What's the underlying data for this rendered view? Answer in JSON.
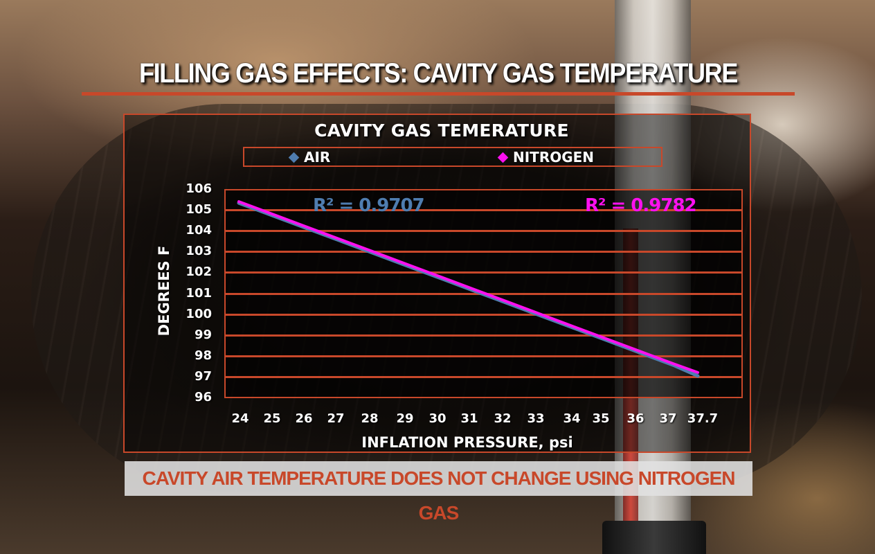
{
  "title": "FILLING GAS EFFECTS: CAVITY GAS TEMPERATURE",
  "footer": "CAVITY AIR TEMPERATURE DOES NOT CHANGE USING NITROGEN GAS",
  "colors": {
    "accent": "#c8482a",
    "air": "#4f7db0",
    "nitrogen": "#ff10f0",
    "text": "#ffffff"
  },
  "chart_data": {
    "type": "line",
    "title": "CAVITY GAS TEMERATURE",
    "xlabel": "INFLATION PRESSURE, psi",
    "ylabel": "DEGREES F",
    "x": [
      "24",
      "25",
      "26",
      "27",
      "28",
      "29",
      "30",
      "31",
      "32",
      "33",
      "34",
      "35",
      "36",
      "37",
      "37.7"
    ],
    "yticks": [
      "106",
      "105",
      "104",
      "103",
      "102",
      "101",
      "100",
      "99",
      "98",
      "97",
      "96"
    ],
    "ylim": [
      96,
      106
    ],
    "grid": true,
    "legend_position": "top",
    "legend": [
      "AIR",
      "NITROGEN"
    ],
    "series": [
      {
        "name": "AIR",
        "color": "#4f7db0",
        "r_squared_label": "R² = 0.9707",
        "values": [
          105.4,
          104.8,
          104.2,
          103.6,
          103.0,
          102.4,
          101.8,
          101.2,
          100.6,
          100.0,
          99.4,
          98.8,
          98.2,
          97.6,
          97.1
        ]
      },
      {
        "name": "NITROGEN",
        "color": "#ff10f0",
        "r_squared_label": "R² = 0.9782",
        "values": [
          105.4,
          104.8,
          104.2,
          103.6,
          103.0,
          102.4,
          101.8,
          101.2,
          100.6,
          100.0,
          99.4,
          98.8,
          98.2,
          97.6,
          97.2
        ]
      }
    ]
  }
}
